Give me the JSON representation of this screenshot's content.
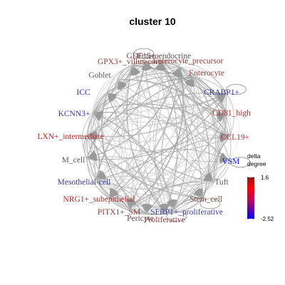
{
  "title": "cluster 10",
  "legend": {
    "title_line1": "delta",
    "title_line2": "degree",
    "max_label": "1.6",
    "min_label": "-2.52",
    "max_value": 1.6,
    "min_value": -2.52,
    "colors": [
      "#ff0000",
      "#0000ff"
    ]
  },
  "nodes": [
    {
      "id": "goblet",
      "label": "Goblet",
      "color": "#5a5a5a",
      "delta": 0.0
    },
    {
      "id": "gpx3",
      "label": "GPX3+_villus-core",
      "color": "#8f3f3f",
      "delta": 0.6
    },
    {
      "id": "gdf15",
      "label": "GDF15+",
      "color": "#8a4545",
      "delta": 0.5
    },
    {
      "id": "enteroendocrine",
      "label": "Enteroendocrine",
      "color": "#5e5050",
      "delta": 0.1
    },
    {
      "id": "enterocyte_precursor",
      "label": "Enterocyte_precursor",
      "color": "#8a4040",
      "delta": 0.6
    },
    {
      "id": "enterocyte",
      "label": "Enterocyte",
      "color": "#9a3a3a",
      "delta": 0.8
    },
    {
      "id": "crabp1",
      "label": "CRABP1+",
      "color": "#3a3ac0",
      "delta": -1.6
    },
    {
      "id": "cd81",
      "label": "CD81_high",
      "color": "#b02a2a",
      "delta": 1.2
    },
    {
      "id": "ccl19",
      "label": "CCL19+",
      "color": "#a03a3a",
      "delta": 0.9
    },
    {
      "id": "vsm",
      "label": "VSM",
      "color": "#1414e0",
      "delta": -2.3
    },
    {
      "id": "tuft",
      "label": "Tuft",
      "color": "#5a5a5a",
      "delta": 0.0
    },
    {
      "id": "stem",
      "label": "Stem_cell",
      "color": "#7a4545",
      "delta": 0.4
    },
    {
      "id": "sfrp1",
      "label": "SFRP1+_proliferative",
      "color": "#3a3aa8",
      "delta": -1.4
    },
    {
      "id": "proliferative",
      "label": "Proliferative",
      "color": "#8f3a3a",
      "delta": 0.7
    },
    {
      "id": "pericyte",
      "label": "Pericyte",
      "color": "#6a4a4a",
      "delta": 0.2
    },
    {
      "id": "pitx1",
      "label": "PITX1+_SM",
      "color": "#8a4040",
      "delta": 0.6
    },
    {
      "id": "nrg1",
      "label": "NRG1+_subepithelial",
      "color": "#b22a2a",
      "delta": 1.3
    },
    {
      "id": "mesothelial",
      "label": "Mesothelial-cell",
      "color": "#3a3aa0",
      "delta": -1.5
    },
    {
      "id": "mcell",
      "label": "M_cell",
      "color": "#5a5a5a",
      "delta": 0.0
    },
    {
      "id": "lxn",
      "label": "LXN+_intermediate",
      "color": "#b02a2a",
      "delta": 1.2
    },
    {
      "id": "kcnn3",
      "label": "KCNN3+",
      "color": "#3a3ab0",
      "delta": -1.5
    },
    {
      "id": "icc",
      "label": "ICC",
      "color": "#2a2ad0",
      "delta": -1.9
    }
  ]
}
